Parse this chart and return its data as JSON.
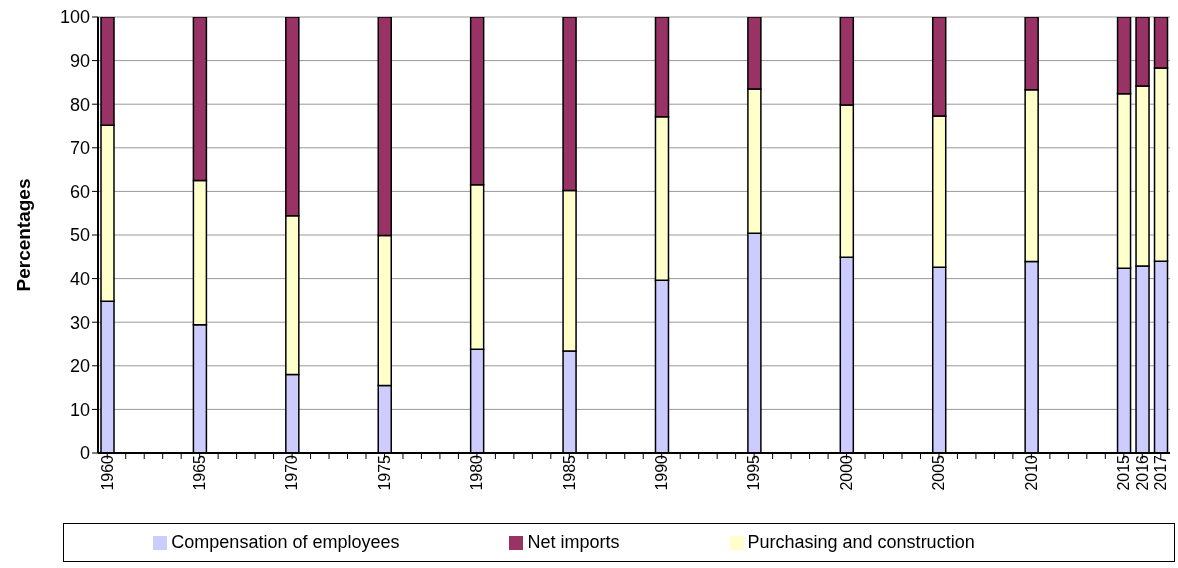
{
  "chart_data": {
    "type": "bar",
    "stacked": true,
    "ylabel": "Percentages",
    "categories": [
      "1960",
      null,
      null,
      null,
      null,
      "1965",
      null,
      null,
      null,
      null,
      "1970",
      null,
      null,
      null,
      null,
      "1975",
      null,
      null,
      null,
      null,
      "1980",
      null,
      null,
      null,
      null,
      "1985",
      null,
      null,
      null,
      null,
      "1990",
      null,
      null,
      null,
      null,
      "1995",
      null,
      null,
      null,
      null,
      "2000",
      null,
      null,
      null,
      null,
      "2005",
      null,
      null,
      null,
      null,
      "2010",
      null,
      null,
      null,
      null,
      "2015",
      "2016",
      "2017"
    ],
    "series": [
      {
        "name": "Compensation of employees",
        "color": "#ccccff",
        "values": [
          34.8,
          null,
          null,
          null,
          null,
          29.4,
          null,
          null,
          null,
          null,
          18,
          null,
          null,
          null,
          null,
          15.5,
          null,
          null,
          null,
          null,
          23.8,
          null,
          null,
          null,
          null,
          23.4,
          null,
          null,
          null,
          null,
          39.6,
          null,
          null,
          null,
          null,
          50.4,
          null,
          null,
          null,
          null,
          44.9,
          null,
          null,
          null,
          null,
          42.6,
          null,
          null,
          null,
          null,
          43.9,
          null,
          null,
          null,
          null,
          42.4,
          42.9,
          44
        ]
      },
      {
        "name": "Purchasing and construction",
        "color": "#ffffcc",
        "values": [
          40.4,
          null,
          null,
          null,
          null,
          33.1,
          null,
          null,
          null,
          null,
          36.4,
          null,
          null,
          null,
          null,
          34.4,
          null,
          null,
          null,
          null,
          37.7,
          null,
          null,
          null,
          null,
          36.8,
          null,
          null,
          null,
          null,
          37.5,
          null,
          null,
          null,
          null,
          33.1,
          null,
          null,
          null,
          null,
          34.9,
          null,
          null,
          null,
          null,
          34.7,
          null,
          null,
          null,
          null,
          39.4,
          null,
          null,
          null,
          null,
          40,
          41.3,
          44.3
        ]
      },
      {
        "name": "Net imports",
        "color": "#993366",
        "values": [
          24.8,
          null,
          null,
          null,
          null,
          37.5,
          null,
          null,
          null,
          null,
          45.6,
          null,
          null,
          null,
          null,
          50.1,
          null,
          null,
          null,
          null,
          38.5,
          null,
          null,
          null,
          null,
          39.8,
          null,
          null,
          null,
          null,
          22.9,
          null,
          null,
          null,
          null,
          16.5,
          null,
          null,
          null,
          null,
          20.2,
          null,
          null,
          null,
          null,
          22.7,
          null,
          null,
          null,
          null,
          16.7,
          null,
          null,
          null,
          null,
          17.6,
          15.8,
          11.7
        ]
      }
    ],
    "ylim": [
      0,
      100
    ],
    "yticks": [
      0,
      10,
      20,
      30,
      40,
      50,
      60,
      70,
      80,
      90,
      100
    ],
    "grid": "y",
    "legend": "bottom"
  }
}
